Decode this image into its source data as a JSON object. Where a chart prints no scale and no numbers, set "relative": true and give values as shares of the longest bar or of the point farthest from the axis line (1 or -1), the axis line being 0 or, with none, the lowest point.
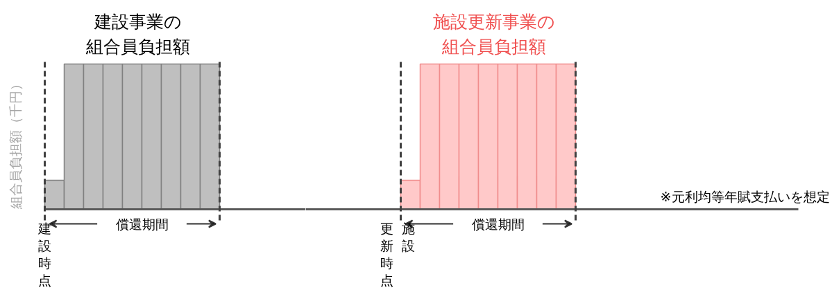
{
  "chart_data": [
    {
      "type": "bar",
      "relative": true,
      "categories": [
        null,
        null,
        null,
        null,
        null,
        null,
        null,
        null,
        null
      ],
      "series": [
        {
          "color": "#bfbfbf",
          "values": [
            0.2,
            1,
            1,
            1,
            1,
            1,
            1,
            1,
            1
          ]
        }
      ],
      "ylabel": "組合員負担額（千円）",
      "annotations": [
        "建設事業の組合員負担額",
        "償還期間",
        "建設時点"
      ]
    },
    {
      "type": "bar",
      "relative": true,
      "categories": [
        null,
        null,
        null,
        null,
        null,
        null,
        null,
        null,
        null
      ],
      "series": [
        {
          "color": "#ffc9c9",
          "values": [
            0.2,
            1,
            1,
            1,
            1,
            1,
            1,
            1,
            1
          ]
        }
      ],
      "annotations": [
        "施設更新事業の組合員負担額",
        "償還期間",
        "施設更新時点",
        "※元利均等年賦支払いを想定"
      ]
    }
  ]
}
